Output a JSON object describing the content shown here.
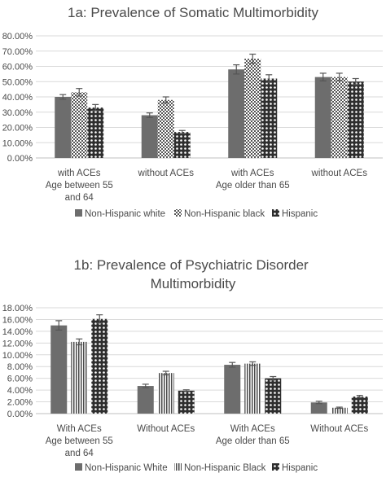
{
  "chart_data": [
    {
      "type": "bar",
      "title": "1a: Prevalence of Somatic Multimorbidity",
      "categories": [
        [
          "with ACEs",
          "Age between 55",
          "and 64"
        ],
        [
          "without ACEs"
        ],
        [
          "with ACEs",
          "Age older than 65"
        ],
        [
          "without ACEs"
        ]
      ],
      "series": [
        {
          "name": "Non-Hispanic white",
          "values": [
            40,
            28,
            58,
            53
          ],
          "errors": [
            1.5,
            1.5,
            3,
            2.5
          ]
        },
        {
          "name": "Non-Hispanic black",
          "values": [
            43,
            38,
            65,
            53
          ],
          "errors": [
            2.5,
            2,
            3,
            2.5
          ]
        },
        {
          "name": "Hispanic",
          "values": [
            33,
            17,
            52,
            50
          ],
          "errors": [
            2,
            1,
            2.5,
            2
          ]
        }
      ],
      "ylim": [
        0,
        80
      ],
      "yticks": [
        0,
        10,
        20,
        30,
        40,
        50,
        60,
        70,
        80
      ],
      "ytick_labels": [
        "0.00%",
        "10.00%",
        "20.00%",
        "30.00%",
        "40.00%",
        "50.00%",
        "60.00%",
        "70.00%",
        "80.00%"
      ],
      "grid": true,
      "legend_position": "bottom"
    },
    {
      "type": "bar",
      "title": "1b: Prevalence of Psychiatric Disorder Multimorbidity",
      "categories": [
        [
          "With ACEs",
          "Age between 55",
          "and 64"
        ],
        [
          "Without ACEs"
        ],
        [
          "With ACEs",
          "Age older than 65"
        ],
        [
          "Without ACEs"
        ]
      ],
      "series": [
        {
          "name": "Non-Hispanic White",
          "values": [
            15.0,
            4.7,
            8.3,
            1.9
          ],
          "errors": [
            0.8,
            0.3,
            0.4,
            0.2
          ]
        },
        {
          "name": "Non-Hispanic Black",
          "values": [
            12.2,
            6.9,
            8.5,
            1.0
          ],
          "errors": [
            0.5,
            0.3,
            0.3,
            0.1
          ]
        },
        {
          "name": "Hispanic",
          "values": [
            16.1,
            3.9,
            6.0,
            2.9
          ],
          "errors": [
            0.7,
            0.15,
            0.3,
            0.2
          ]
        }
      ],
      "ylim": [
        0,
        18
      ],
      "yticks": [
        0,
        2,
        4,
        6,
        8,
        10,
        12,
        14,
        16,
        18
      ],
      "ytick_labels": [
        "0.00%",
        "2.00%",
        "4.00%",
        "6.00%",
        "8.00%",
        "10.00%",
        "12.00%",
        "14.00%",
        "16.00%",
        "18.00%"
      ],
      "grid": true,
      "legend_position": "bottom"
    }
  ],
  "colors": {
    "solid_series": "#6d6d6d",
    "pattern_dark": "#555555",
    "grid": "#d9d9d9",
    "text": "#4a4a4a"
  }
}
